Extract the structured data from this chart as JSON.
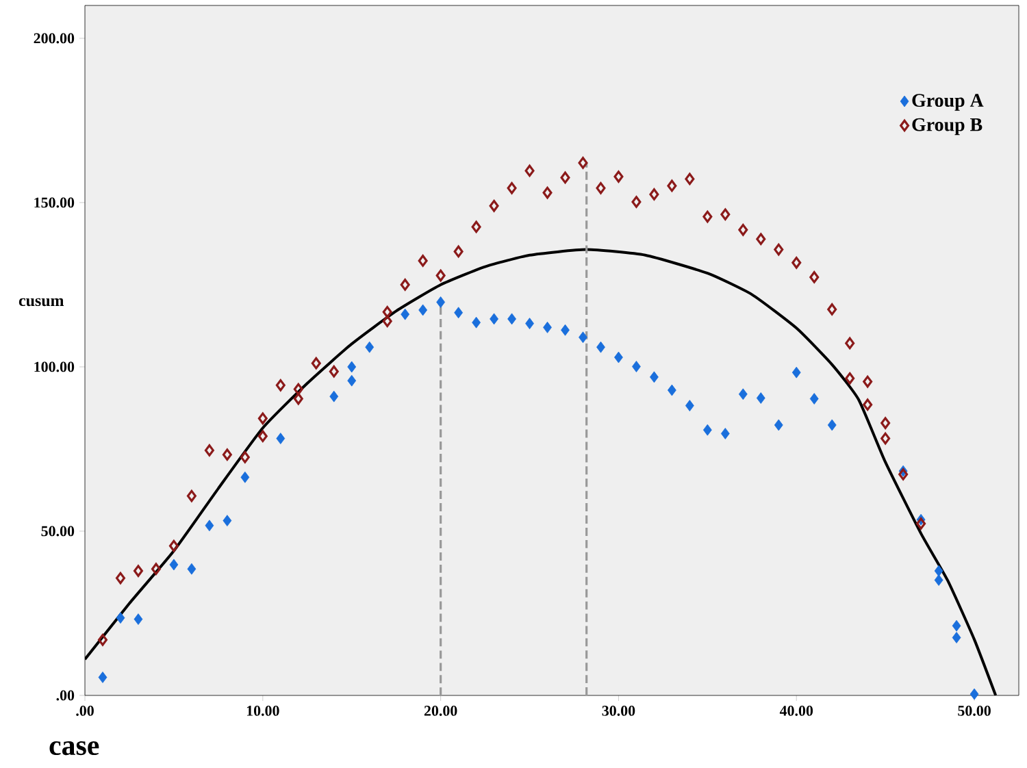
{
  "chart_data": {
    "type": "scatter",
    "xlabel": "case",
    "ylabel": "cusum",
    "xlim": [
      0,
      52.5
    ],
    "ylim": [
      0,
      210
    ],
    "xticks": [
      {
        "value": 0,
        "label": ".00"
      },
      {
        "value": 10,
        "label": "10.00"
      },
      {
        "value": 20,
        "label": "20.00"
      },
      {
        "value": 30,
        "label": "30.00"
      },
      {
        "value": 40,
        "label": "40.00"
      },
      {
        "value": 50,
        "label": "50.00"
      }
    ],
    "yticks": [
      {
        "value": 0,
        "label": ".00"
      },
      {
        "value": 50,
        "label": "50.00"
      },
      {
        "value": 100,
        "label": "100.00"
      },
      {
        "value": 150,
        "label": "150.00"
      },
      {
        "value": 200,
        "label": "200.00"
      }
    ],
    "legend": "top right",
    "grid": false,
    "series": [
      {
        "name": "Group A",
        "marker": "diamond",
        "color": "#1a6fdc",
        "x": [
          1,
          2,
          3,
          5,
          6,
          7,
          8,
          9,
          11,
          14,
          15,
          15,
          16,
          18,
          19,
          20,
          21,
          22,
          23,
          24,
          25,
          26,
          27,
          28,
          29,
          30,
          31,
          32,
          33,
          34,
          35,
          36,
          37,
          38,
          39,
          40,
          41,
          42,
          46,
          47,
          48,
          48,
          49,
          49,
          50
        ],
        "values": [
          5.5,
          23.6,
          23.2,
          39.8,
          38.5,
          51.7,
          53.2,
          66.4,
          78.2,
          91,
          95.8,
          100,
          106,
          116,
          117.3,
          119.7,
          116.5,
          113.5,
          114.6,
          114.6,
          113.2,
          112,
          111.2,
          109,
          106,
          102.9,
          100.1,
          96.9,
          92.9,
          88.2,
          80.8,
          79.7,
          91.7,
          90.5,
          82.3,
          98.3,
          90.3,
          82.3,
          68.3,
          53.5,
          37.9,
          35.1,
          21.2,
          17.6,
          0.4
        ]
      },
      {
        "name": "Group B",
        "marker": "diamond",
        "color": "#8b1a1a",
        "x": [
          1,
          2,
          3,
          4,
          5,
          6,
          7,
          8,
          9,
          10,
          10,
          11,
          12,
          12,
          13,
          14,
          17,
          17,
          18,
          19,
          20,
          21,
          22,
          23,
          24,
          25,
          26,
          27,
          28,
          29,
          30,
          31,
          32,
          33,
          34,
          35,
          36,
          37,
          38,
          39,
          40,
          41,
          42,
          43,
          43,
          44,
          44,
          45,
          45,
          46,
          47
        ],
        "values": [
          16.9,
          35.7,
          37.9,
          38.5,
          45.5,
          60.7,
          74.6,
          73.3,
          72.5,
          78.9,
          84.3,
          94.4,
          93.2,
          90.3,
          101.1,
          98.6,
          116.7,
          113.9,
          125,
          132.3,
          127.8,
          135.1,
          142.6,
          149,
          154.4,
          159.7,
          153,
          157.6,
          162.1,
          154.4,
          157.9,
          150.2,
          152.5,
          155.1,
          157.2,
          145.7,
          146.4,
          141.7,
          138.9,
          135.7,
          131.7,
          127.3,
          117.5,
          107.2,
          96.5,
          95.5,
          88.5,
          82.9,
          78.2,
          67.3,
          52.3
        ]
      },
      {
        "type": "line",
        "marker": "none",
        "line_style": "solid",
        "color": "#000000",
        "x": [
          0,
          2.5,
          5,
          7.5,
          10,
          12.5,
          15,
          17.5,
          20,
          22.5,
          25,
          28.2,
          31.5,
          35,
          37.5,
          40,
          42,
          43.5,
          45,
          47,
          48.5,
          50,
          51.2
        ],
        "values": [
          11,
          28,
          44,
          63,
          81.4,
          95,
          107,
          117,
          125,
          130.5,
          134,
          135.7,
          134,
          128.5,
          122,
          111.8,
          100.7,
          90,
          71,
          49.3,
          35,
          17,
          0
        ]
      },
      {
        "type": "line",
        "marker": "none",
        "line_style": "dashed",
        "color": "#999999",
        "x": [
          20,
          20
        ],
        "values": [
          0,
          119.7
        ]
      },
      {
        "type": "line",
        "marker": "none",
        "line_style": "dashed",
        "color": "#999999",
        "x": [
          28.2,
          28.2
        ],
        "values": [
          0,
          162.1
        ]
      }
    ]
  }
}
